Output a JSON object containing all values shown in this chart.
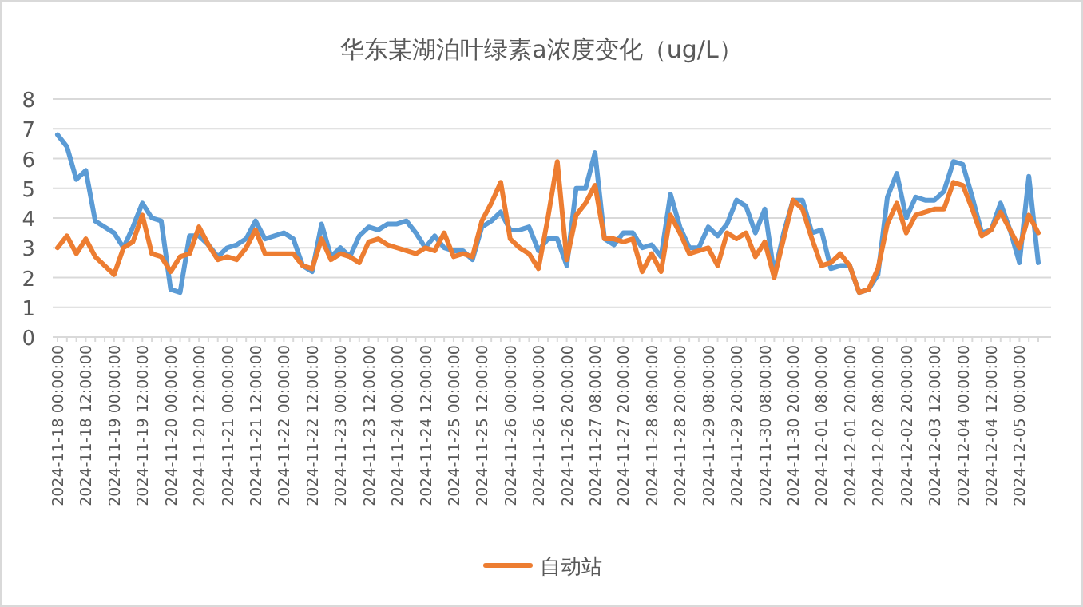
{
  "chart_data": {
    "type": "line",
    "title": "华东某湖泊叶绿素a浓度变化（ug/L）",
    "categories": [
      "2024-11-18 00:00:00",
      null,
      null,
      "2024-11-18 12:00:00",
      null,
      null,
      "2024-11-19 00:00:00",
      null,
      null,
      "2024-11-19 12:00:00",
      null,
      null,
      "2024-11-20 00:00:00",
      null,
      null,
      "2024-11-20 12:00:00",
      null,
      null,
      "2024-11-21 00:00:00",
      null,
      null,
      "2024-11-21 12:00:00",
      null,
      null,
      "2024-11-22 00:00:00",
      null,
      null,
      "2024-11-22 12:00:00",
      null,
      null,
      "2024-11-23 00:00:00",
      null,
      null,
      "2024-11-23 12:00:00",
      null,
      null,
      "2024-11-24 00:00:00",
      null,
      null,
      "2024-11-24 12:00:00",
      null,
      null,
      "2024-11-25 00:00:00",
      null,
      null,
      "2024-11-25 12:00:00",
      null,
      null,
      "2024-11-26 00:00:00",
      null,
      null,
      "2024-11-26 10:00:00",
      null,
      null,
      "2024-11-26 20:00:00",
      null,
      null,
      "2024-11-27 08:00:00",
      null,
      null,
      "2024-11-27 20:00:00",
      null,
      null,
      "2024-11-28 08:00:00",
      null,
      null,
      "2024-11-28 20:00:00",
      null,
      null,
      "2024-11-29 08:00:00",
      null,
      null,
      "2024-11-29 20:00:00",
      null,
      null,
      "2024-11-30 08:00:00",
      null,
      null,
      "2024-11-30 20:00:00",
      null,
      null,
      "2024-12-01 08:00:00",
      null,
      null,
      "2024-12-01 20:00:00",
      null,
      null,
      "2024-12-02 08:00:00",
      null,
      null,
      "2024-12-02 20:00:00",
      null,
      null,
      "2024-12-03 12:00:00",
      null,
      null,
      "2024-12-04 00:00:00",
      null,
      null,
      "2024-12-04 12:00:00",
      null,
      null,
      "2024-12-05 00:00:00",
      null,
      null
    ],
    "series": [
      {
        "color": "#5b9bd5",
        "values": [
          6.8,
          6.4,
          5.3,
          5.6,
          3.9,
          3.7,
          3.5,
          3.0,
          3.7,
          4.5,
          4.0,
          3.9,
          1.6,
          1.5,
          3.4,
          3.4,
          3.1,
          2.7,
          3.0,
          3.1,
          3.3,
          3.9,
          3.3,
          3.4,
          3.5,
          3.3,
          2.4,
          2.2,
          3.8,
          2.7,
          3.0,
          2.7,
          3.4,
          3.7,
          3.6,
          3.8,
          3.8,
          3.9,
          3.5,
          3.0,
          3.4,
          3.0,
          2.9,
          2.9,
          2.6,
          3.7,
          3.9,
          4.2,
          3.6,
          3.6,
          3.7,
          2.9,
          3.3,
          3.3,
          2.4,
          5.0,
          5.0,
          6.2,
          3.3,
          3.1,
          3.5,
          3.5,
          3.0,
          3.1,
          2.7,
          4.8,
          3.7,
          3.0,
          3.0,
          3.7,
          3.4,
          3.8,
          4.6,
          4.4,
          3.5,
          4.3,
          2.1,
          3.5,
          4.6,
          4.6,
          3.5,
          3.6,
          2.3,
          2.4,
          2.4,
          1.5,
          1.6,
          2.1,
          4.7,
          5.5,
          4.0,
          4.7,
          4.6,
          4.6,
          4.9,
          5.9,
          5.8,
          4.7,
          3.5,
          3.6,
          4.5,
          3.6,
          2.5,
          5.4,
          2.5
        ]
      },
      {
        "name": "自动站",
        "color": "#ed7d31",
        "values": [
          3.0,
          3.4,
          2.8,
          3.3,
          2.7,
          2.4,
          2.1,
          3.0,
          3.2,
          4.1,
          2.8,
          2.7,
          2.2,
          2.7,
          2.8,
          3.7,
          3.1,
          2.6,
          2.7,
          2.6,
          3.0,
          3.6,
          2.8,
          2.8,
          2.8,
          2.8,
          2.4,
          2.3,
          3.3,
          2.6,
          2.8,
          2.7,
          2.5,
          3.2,
          3.3,
          3.1,
          3.0,
          2.9,
          2.8,
          3.0,
          2.9,
          3.5,
          2.7,
          2.8,
          2.7,
          3.9,
          4.5,
          5.2,
          3.3,
          3.0,
          2.8,
          2.3,
          4.0,
          5.9,
          2.6,
          4.1,
          4.5,
          5.1,
          3.3,
          3.3,
          3.2,
          3.3,
          2.2,
          2.8,
          2.2,
          4.1,
          3.5,
          2.8,
          2.9,
          3.0,
          2.4,
          3.5,
          3.3,
          3.5,
          2.7,
          3.2,
          2.0,
          3.3,
          4.6,
          4.3,
          3.3,
          2.4,
          2.5,
          2.8,
          2.4,
          1.5,
          1.6,
          2.3,
          3.8,
          4.5,
          3.5,
          4.1,
          4.2,
          4.3,
          4.3,
          5.2,
          5.1,
          4.3,
          3.4,
          3.6,
          4.2,
          3.6,
          3.0,
          4.1,
          3.5
        ]
      }
    ],
    "ylim": [
      0,
      8
    ],
    "yticks": [
      0,
      1,
      2,
      3,
      4,
      5,
      6,
      7,
      8
    ],
    "grid": "y",
    "legend": "bottom",
    "marker": "none",
    "line_style": "solid"
  }
}
